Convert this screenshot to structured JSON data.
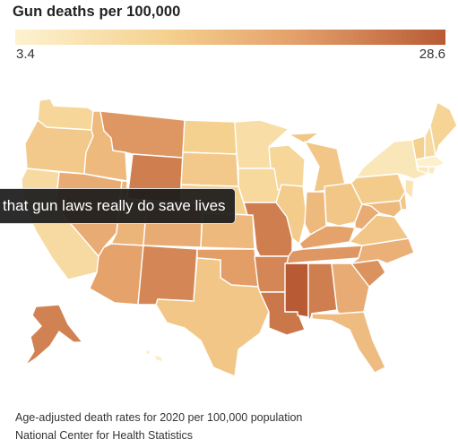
{
  "title": "Gun deaths per 100,000",
  "legend": {
    "min_label": "3.4",
    "max_label": "28.6",
    "min_value": 3.4,
    "max_value": 28.6,
    "color_low": "#fdf2cf",
    "color_high": "#b85b35"
  },
  "caption": "that gun laws really do save lives",
  "notes": {
    "methodology": "Age-adjusted death rates for 2020 per 100,000 population",
    "source": "National Center for Health Statistics"
  },
  "states": [
    {
      "id": "WA",
      "shade": 0.3
    },
    {
      "id": "OR",
      "shade": 0.4
    },
    {
      "id": "CA",
      "shade": 0.25
    },
    {
      "id": "ID",
      "shade": 0.5
    },
    {
      "id": "NV",
      "shade": 0.58
    },
    {
      "id": "MT",
      "shade": 0.7
    },
    {
      "id": "WY",
      "shade": 0.82
    },
    {
      "id": "UT",
      "shade": 0.52
    },
    {
      "id": "CO",
      "shade": 0.58
    },
    {
      "id": "AZ",
      "shade": 0.64
    },
    {
      "id": "NM",
      "shade": 0.78
    },
    {
      "id": "ND",
      "shade": 0.35
    },
    {
      "id": "SD",
      "shade": 0.4
    },
    {
      "id": "NE",
      "shade": 0.35
    },
    {
      "id": "KS",
      "shade": 0.5
    },
    {
      "id": "OK",
      "shade": 0.66
    },
    {
      "id": "TX",
      "shade": 0.42
    },
    {
      "id": "MN",
      "shade": 0.22
    },
    {
      "id": "IA",
      "shade": 0.28
    },
    {
      "id": "MO",
      "shade": 0.82
    },
    {
      "id": "AR",
      "shade": 0.78
    },
    {
      "id": "LA",
      "shade": 0.86
    },
    {
      "id": "WI",
      "shade": 0.3
    },
    {
      "id": "IL",
      "shade": 0.38
    },
    {
      "id": "MI",
      "shade": 0.42
    },
    {
      "id": "IN",
      "shade": 0.5
    },
    {
      "id": "OH",
      "shade": 0.42
    },
    {
      "id": "KY",
      "shade": 0.64
    },
    {
      "id": "TN",
      "shade": 0.7
    },
    {
      "id": "MS",
      "shade": 1.0
    },
    {
      "id": "AL",
      "shade": 0.82
    },
    {
      "id": "GA",
      "shade": 0.58
    },
    {
      "id": "FL",
      "shade": 0.48
    },
    {
      "id": "SC",
      "shade": 0.72
    },
    {
      "id": "NC",
      "shade": 0.55
    },
    {
      "id": "VA",
      "shade": 0.42
    },
    {
      "id": "WV",
      "shade": 0.58
    },
    {
      "id": "PA",
      "shade": 0.38
    },
    {
      "id": "NY",
      "shade": 0.12
    },
    {
      "id": "VT",
      "shade": 0.35
    },
    {
      "id": "NH",
      "shade": 0.25
    },
    {
      "id": "ME",
      "shade": 0.32
    },
    {
      "id": "MA",
      "shade": 0.02
    },
    {
      "id": "CT",
      "shade": 0.1
    },
    {
      "id": "RI",
      "shade": 0.08
    },
    {
      "id": "NJ",
      "shade": 0.15
    },
    {
      "id": "DE",
      "shade": 0.42
    },
    {
      "id": "MD",
      "shade": 0.5
    },
    {
      "id": "AK",
      "shade": 0.8
    },
    {
      "id": "HI",
      "shade": 0.05
    }
  ]
}
